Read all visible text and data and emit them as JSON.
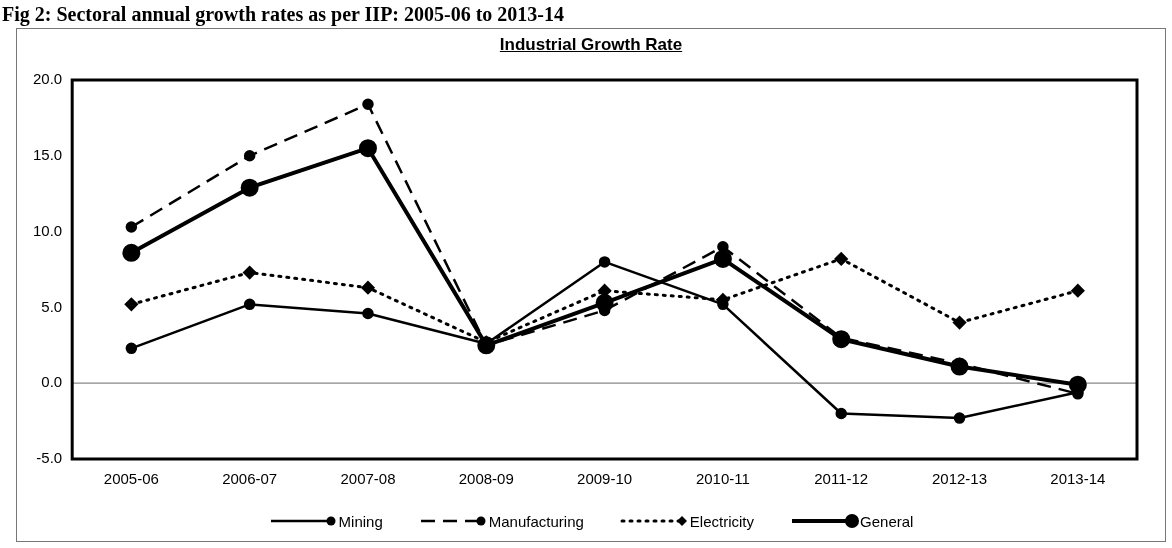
{
  "chart_data": {
    "type": "line",
    "title": "Fig 2: Sectoral annual growth rates as per IIP: 2005-06 to 2013-14",
    "subtitle": "Industrial Growth Rate",
    "categories": [
      "2005-06",
      "2006-07",
      "2007-08",
      "2008-09",
      "2009-10",
      "2010-11",
      "2011-12",
      "2012-13",
      "2013-14"
    ],
    "series": [
      {
        "name": "Mining",
        "color": "#000000",
        "line_style": "solid",
        "marker": "circle",
        "values": [
          2.3,
          5.2,
          4.6,
          2.6,
          8.0,
          5.2,
          -2.0,
          -2.3,
          -0.6
        ]
      },
      {
        "name": "Manufacturing",
        "color": "#000000",
        "line_style": "dashed",
        "marker": "circle",
        "values": [
          10.3,
          15.0,
          18.4,
          2.5,
          4.8,
          9.0,
          3.0,
          1.3,
          -0.7
        ]
      },
      {
        "name": "Electricity",
        "color": "#000000",
        "line_style": "dotted",
        "marker": "diamond",
        "values": [
          5.2,
          7.3,
          6.3,
          2.7,
          6.1,
          5.5,
          8.2,
          4.0,
          6.1
        ]
      },
      {
        "name": "General",
        "color": "#000000",
        "line_style": "solid",
        "marker": "circle",
        "values": [
          8.6,
          12.9,
          15.5,
          2.5,
          5.3,
          8.2,
          2.9,
          1.1,
          -0.1
        ]
      }
    ],
    "ylim": [
      -5,
      20
    ],
    "yticks": [
      {
        "value": -5,
        "label": "-5.0"
      },
      {
        "value": 0,
        "label": "0.0"
      },
      {
        "value": 5,
        "label": "5.0"
      },
      {
        "value": 10,
        "label": "10.0"
      },
      {
        "value": 15,
        "label": "15.0"
      },
      {
        "value": 20,
        "label": "20.0"
      }
    ],
    "ref_lines": [
      {
        "axis": "y",
        "value": 0,
        "color": "#888888"
      }
    ],
    "grid": false,
    "legend": "bottom"
  }
}
